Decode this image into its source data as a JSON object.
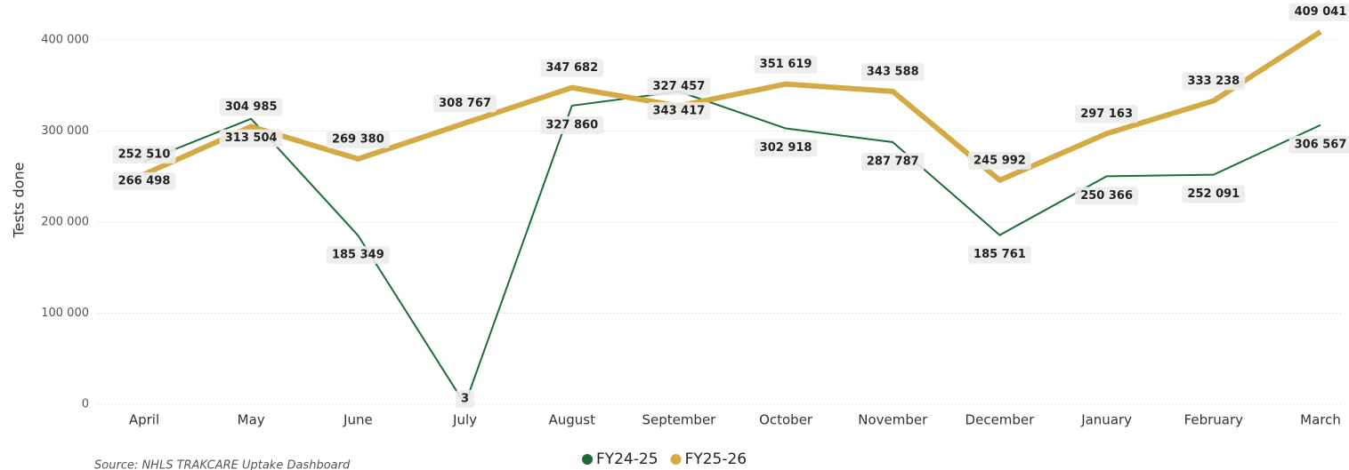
{
  "chart_data": {
    "type": "line",
    "y_label": "Tests done",
    "categories": [
      "April",
      "May",
      "June",
      "July",
      "August",
      "September",
      "October",
      "November",
      "December",
      "January",
      "February",
      "March"
    ],
    "series": [
      {
        "name": "FY24-25",
        "color": "#1e6b3a",
        "values": [
          266498,
          313504,
          185349,
          3,
          327860,
          343417,
          302918,
          287787,
          185761,
          250366,
          252091,
          306567
        ],
        "value_labels": [
          "266 498",
          "313 504",
          "185 349",
          "3",
          "327 860",
          "343 417",
          "302 918",
          "287 787",
          "185 761",
          "250 366",
          "252 091",
          "306 567"
        ]
      },
      {
        "name": "FY25-26",
        "color": "#d4aa45",
        "values": [
          252510,
          304985,
          269380,
          308767,
          347682,
          327457,
          351619,
          343588,
          245992,
          297163,
          333238,
          409041
        ],
        "value_labels": [
          "252 510",
          "304 985",
          "269 380",
          "308 767",
          "347 682",
          "327 457",
          "351 619",
          "343 588",
          "245 992",
          "297 163",
          "333 238",
          "409 041"
        ]
      }
    ],
    "ylim": [
      0,
      420000
    ],
    "yticks": [
      {
        "value": 0,
        "label": "0"
      },
      {
        "value": 100000,
        "label": "100 000"
      },
      {
        "value": 200000,
        "label": "200 000"
      },
      {
        "value": 300000,
        "label": "300 000"
      },
      {
        "value": 400000,
        "label": "400 000"
      }
    ],
    "grid": true,
    "legend": "bottom",
    "source": "Source: NHLS TRAKCARE Uptake Dashboard"
  }
}
